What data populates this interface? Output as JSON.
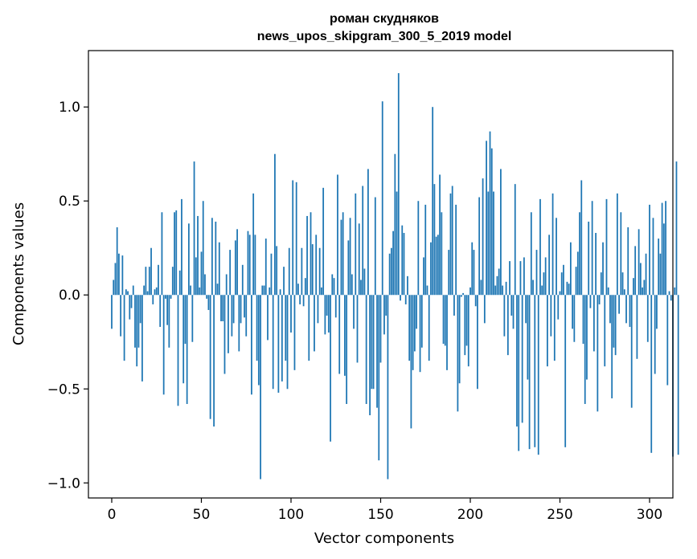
{
  "chart_data": {
    "type": "bar",
    "title": "роман скудняков",
    "subtitle": "news_upos_skipgram_300_5_2019 model",
    "xlabel": "Vector components",
    "ylabel": "Components values",
    "xlim": [
      -13,
      313
    ],
    "ylim": [
      -1.08,
      1.3
    ],
    "xticks": [
      0,
      50,
      100,
      150,
      200,
      250,
      300
    ],
    "xtick_labels": [
      "0",
      "50",
      "100",
      "150",
      "200",
      "250",
      "300"
    ],
    "yticks": [
      -1.0,
      -0.5,
      0.0,
      0.5,
      1.0
    ],
    "ytick_labels": [
      "−1.0",
      "−0.5",
      "0.0",
      "0.5",
      "1.0"
    ],
    "bar_color": "#1f77b4",
    "grid": false,
    "legend": "none",
    "values": [
      -0.18,
      0.08,
      0.17,
      0.36,
      0.22,
      -0.22,
      0.21,
      -0.35,
      0.03,
      0.02,
      -0.13,
      -0.07,
      0.05,
      -0.28,
      -0.38,
      -0.28,
      -0.15,
      -0.46,
      0.05,
      0.15,
      0.02,
      0.15,
      0.25,
      -0.05,
      0.03,
      0.04,
      0.16,
      -0.17,
      0.44,
      -0.53,
      -0.02,
      -0.16,
      -0.28,
      -0.02,
      0.15,
      0.44,
      0.45,
      -0.59,
      0.13,
      0.51,
      -0.47,
      -0.26,
      -0.58,
      0.38,
      0.05,
      -0.25,
      0.71,
      0.2,
      0.42,
      0.04,
      0.23,
      0.5,
      0.11,
      -0.02,
      -0.08,
      -0.66,
      0.41,
      -0.7,
      0.39,
      0.06,
      0.28,
      -0.14,
      -0.14,
      -0.42,
      0.11,
      -0.31,
      0.24,
      -0.22,
      -0.15,
      0.29,
      0.35,
      -0.3,
      -0.15,
      0.16,
      -0.12,
      -0.22,
      0.34,
      0.32,
      -0.53,
      0.54,
      0.32,
      -0.35,
      -0.48,
      -0.98,
      0.05,
      0.05,
      0.3,
      -0.24,
      0.04,
      0.22,
      -0.5,
      0.75,
      0.26,
      -0.52,
      0.03,
      -0.46,
      0.15,
      -0.35,
      -0.5,
      0.25,
      -0.2,
      0.61,
      -0.4,
      0.6,
      0.06,
      -0.05,
      0.25,
      -0.06,
      0.09,
      0.42,
      -0.35,
      0.44,
      0.27,
      -0.3,
      0.32,
      -0.15,
      0.25,
      0.04,
      0.57,
      -0.21,
      -0.11,
      -0.2,
      -0.78,
      0.11,
      0.09,
      -0.12,
      0.64,
      -0.42,
      0.4,
      0.44,
      -0.43,
      -0.58,
      0.29,
      0.41,
      0.11,
      -0.18,
      0.54,
      -0.36,
      0.38,
      0.08,
      0.58,
      0.14,
      -0.58,
      0.67,
      -0.64,
      -0.5,
      -0.5,
      0.52,
      -0.6,
      -0.88,
      -0.36,
      1.03,
      -0.21,
      -0.11,
      -0.98,
      0.22,
      0.25,
      0.34,
      0.75,
      0.55,
      1.18,
      -0.03,
      0.37,
      0.33,
      -0.05,
      0.1,
      -0.35,
      -0.71,
      -0.4,
      -0.3,
      -0.18,
      0.5,
      -0.41,
      -0.28,
      0.2,
      0.48,
      0.05,
      -0.35,
      0.28,
      1.0,
      0.59,
      0.31,
      0.32,
      0.64,
      0.44,
      -0.26,
      -0.27,
      -0.4,
      0.24,
      0.54,
      0.58,
      -0.11,
      0.48,
      -0.62,
      -0.47,
      -0.01,
      0.01,
      -0.32,
      -0.27,
      -0.38,
      0.04,
      0.28,
      0.24,
      -0.06,
      -0.5,
      0.52,
      0.08,
      0.62,
      -0.15,
      0.82,
      0.55,
      0.87,
      0.78,
      0.55,
      0.05,
      0.1,
      0.14,
      0.67,
      0.05,
      -0.22,
      0.07,
      -0.32,
      0.18,
      -0.11,
      -0.18,
      0.59,
      -0.7,
      -0.83,
      0.18,
      -0.68,
      0.2,
      -0.15,
      -0.45,
      -0.82,
      0.44,
      0.08,
      -0.81,
      0.24,
      -0.85,
      0.51,
      0.05,
      0.12,
      0.2,
      -0.38,
      0.32,
      -0.22,
      0.54,
      -0.35,
      0.41,
      -0.13,
      0.02,
      0.12,
      0.16,
      -0.81,
      0.07,
      0.06,
      0.28,
      -0.18,
      -0.25,
      0.15,
      0.23,
      0.44,
      0.61,
      -0.26,
      -0.58,
      -0.45,
      0.39,
      -0.07,
      0.5,
      -0.3,
      0.33,
      -0.62,
      -0.05,
      0.12,
      0.28,
      -0.38,
      0.51,
      0.04,
      -0.15,
      -0.55,
      -0.28,
      -0.32,
      0.54,
      -0.1,
      0.44,
      0.12,
      0.03,
      -0.15,
      0.36,
      -0.17,
      -0.6,
      0.09,
      0.26,
      -0.34,
      0.35,
      0.17,
      0.04,
      0.08,
      0.22,
      -0.25,
      0.48,
      -0.84,
      0.41,
      -0.42,
      -0.18,
      0.3,
      0.22,
      0.49,
      0.38,
      0.5,
      -0.48,
      0.02,
      -0.03,
      -0.86,
      0.04,
      0.71,
      -0.85
    ]
  }
}
